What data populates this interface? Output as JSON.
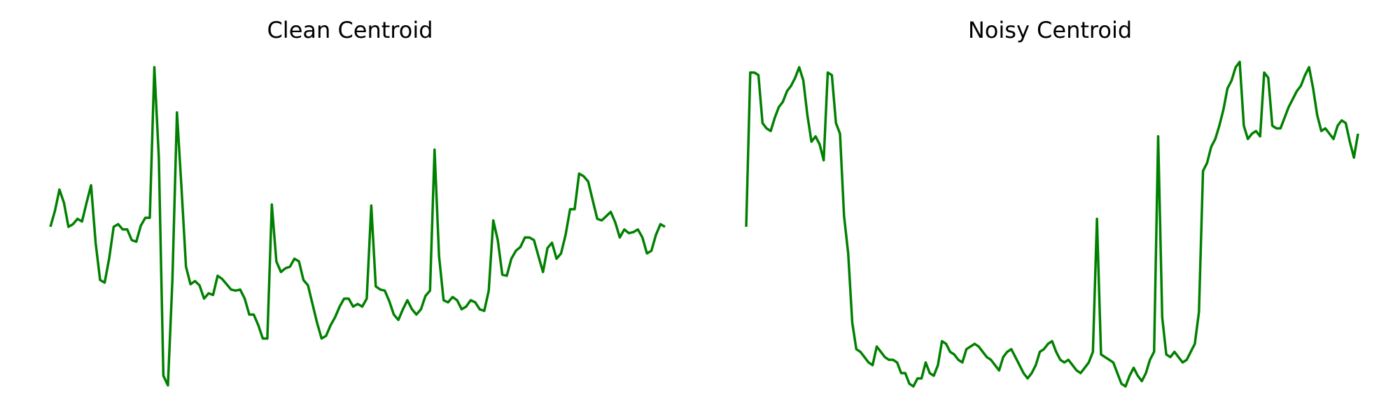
{
  "chart_data": [
    {
      "type": "line",
      "title": "Clean Centroid",
      "xlabel": "",
      "ylabel": "",
      "axes_visible": false,
      "grid": false,
      "color": "#008000",
      "ylim": [
        -3.0,
        3.0
      ],
      "series": [
        {
          "values": [
            0.0,
            0.3,
            0.7,
            0.45,
            0.0,
            0.05,
            0.15,
            0.1,
            0.45,
            0.78,
            -0.3,
            -1.0,
            -1.05,
            -0.6,
            0.0,
            0.05,
            -0.05,
            -0.05,
            -0.25,
            -0.28,
            0.02,
            0.17,
            0.17,
            3.0,
            1.3,
            -2.8,
            -2.98,
            -1.0,
            2.15,
            0.75,
            -0.75,
            -1.08,
            -1.02,
            -1.1,
            -1.35,
            -1.25,
            -1.28,
            -0.92,
            -0.98,
            -1.08,
            -1.18,
            -1.2,
            -1.18,
            -1.35,
            -1.65,
            -1.65,
            -1.85,
            -2.1,
            -2.1,
            0.42,
            -0.65,
            -0.85,
            -0.78,
            -0.75,
            -0.6,
            -0.65,
            -1.0,
            -1.1,
            -1.45,
            -1.8,
            -2.1,
            -2.05,
            -1.85,
            -1.7,
            -1.5,
            -1.35,
            -1.35,
            -1.5,
            -1.45,
            -1.5,
            -1.35,
            0.4,
            -1.12,
            -1.18,
            -1.2,
            -1.4,
            -1.65,
            -1.75,
            -1.55,
            -1.38,
            -1.55,
            -1.65,
            -1.55,
            -1.3,
            -1.2,
            1.45,
            -0.55,
            -1.38,
            -1.42,
            -1.32,
            -1.38,
            -1.55,
            -1.5,
            -1.38,
            -1.42,
            -1.55,
            -1.58,
            -1.2,
            0.12,
            -0.25,
            -0.9,
            -0.92,
            -0.6,
            -0.45,
            -0.38,
            -0.2,
            -0.2,
            -0.25,
            -0.55,
            -0.85,
            -0.4,
            -0.3,
            -0.6,
            -0.5,
            -0.15,
            0.33,
            0.33,
            1.0,
            0.95,
            0.85,
            0.5,
            0.15,
            0.12,
            0.2,
            0.28,
            0.08,
            -0.2,
            -0.05,
            -0.12,
            -0.1,
            -0.05,
            -0.2,
            -0.5,
            -0.45,
            -0.15,
            0.05,
            0.0
          ]
        }
      ]
    },
    {
      "type": "line",
      "title": "Noisy Centroid",
      "xlabel": "",
      "ylabel": "",
      "axes_visible": false,
      "grid": false,
      "color": "#008000",
      "ylim": [
        -3.0,
        3.0
      ],
      "series": [
        {
          "values": [
            0.0,
            2.9,
            2.9,
            2.85,
            1.95,
            1.85,
            1.8,
            2.05,
            2.25,
            2.35,
            2.55,
            2.65,
            2.8,
            3.0,
            2.75,
            2.1,
            1.6,
            1.7,
            1.55,
            1.25,
            2.9,
            2.85,
            1.95,
            1.75,
            0.2,
            -0.5,
            -1.8,
            -2.3,
            -2.35,
            -2.45,
            -2.55,
            -2.6,
            -2.25,
            -2.35,
            -2.45,
            -2.5,
            -2.5,
            -2.55,
            -2.75,
            -2.75,
            -2.95,
            -3.0,
            -2.85,
            -2.85,
            -2.55,
            -2.75,
            -2.8,
            -2.6,
            -2.15,
            -2.2,
            -2.35,
            -2.4,
            -2.5,
            -2.55,
            -2.3,
            -2.25,
            -2.2,
            -2.25,
            -2.35,
            -2.45,
            -2.5,
            -2.6,
            -2.7,
            -2.45,
            -2.35,
            -2.3,
            -2.45,
            -2.6,
            -2.75,
            -2.85,
            -2.75,
            -2.6,
            -2.35,
            -2.3,
            -2.2,
            -2.15,
            -2.35,
            -2.5,
            -2.55,
            -2.5,
            -2.6,
            -2.7,
            -2.75,
            -2.65,
            -2.55,
            -2.35,
            0.15,
            -2.4,
            -2.45,
            -2.5,
            -2.55,
            -2.75,
            -2.95,
            -3.0,
            -2.8,
            -2.65,
            -2.8,
            -2.9,
            -2.75,
            -2.5,
            -2.35,
            1.7,
            -1.7,
            -2.4,
            -2.45,
            -2.35,
            -2.45,
            -2.55,
            -2.5,
            -2.35,
            -2.2,
            -1.6,
            1.05,
            1.2,
            1.5,
            1.65,
            1.9,
            2.2,
            2.6,
            2.75,
            3.0,
            3.1,
            1.9,
            1.65,
            1.75,
            1.8,
            1.7,
            2.9,
            2.8,
            1.9,
            1.85,
            1.85,
            2.05,
            2.25,
            2.4,
            2.55,
            2.65,
            2.85,
            3.0,
            2.6,
            2.1,
            1.8,
            1.85,
            1.75,
            1.65,
            1.9,
            2.0,
            1.95,
            1.6,
            1.3,
            1.75
          ]
        }
      ]
    }
  ]
}
